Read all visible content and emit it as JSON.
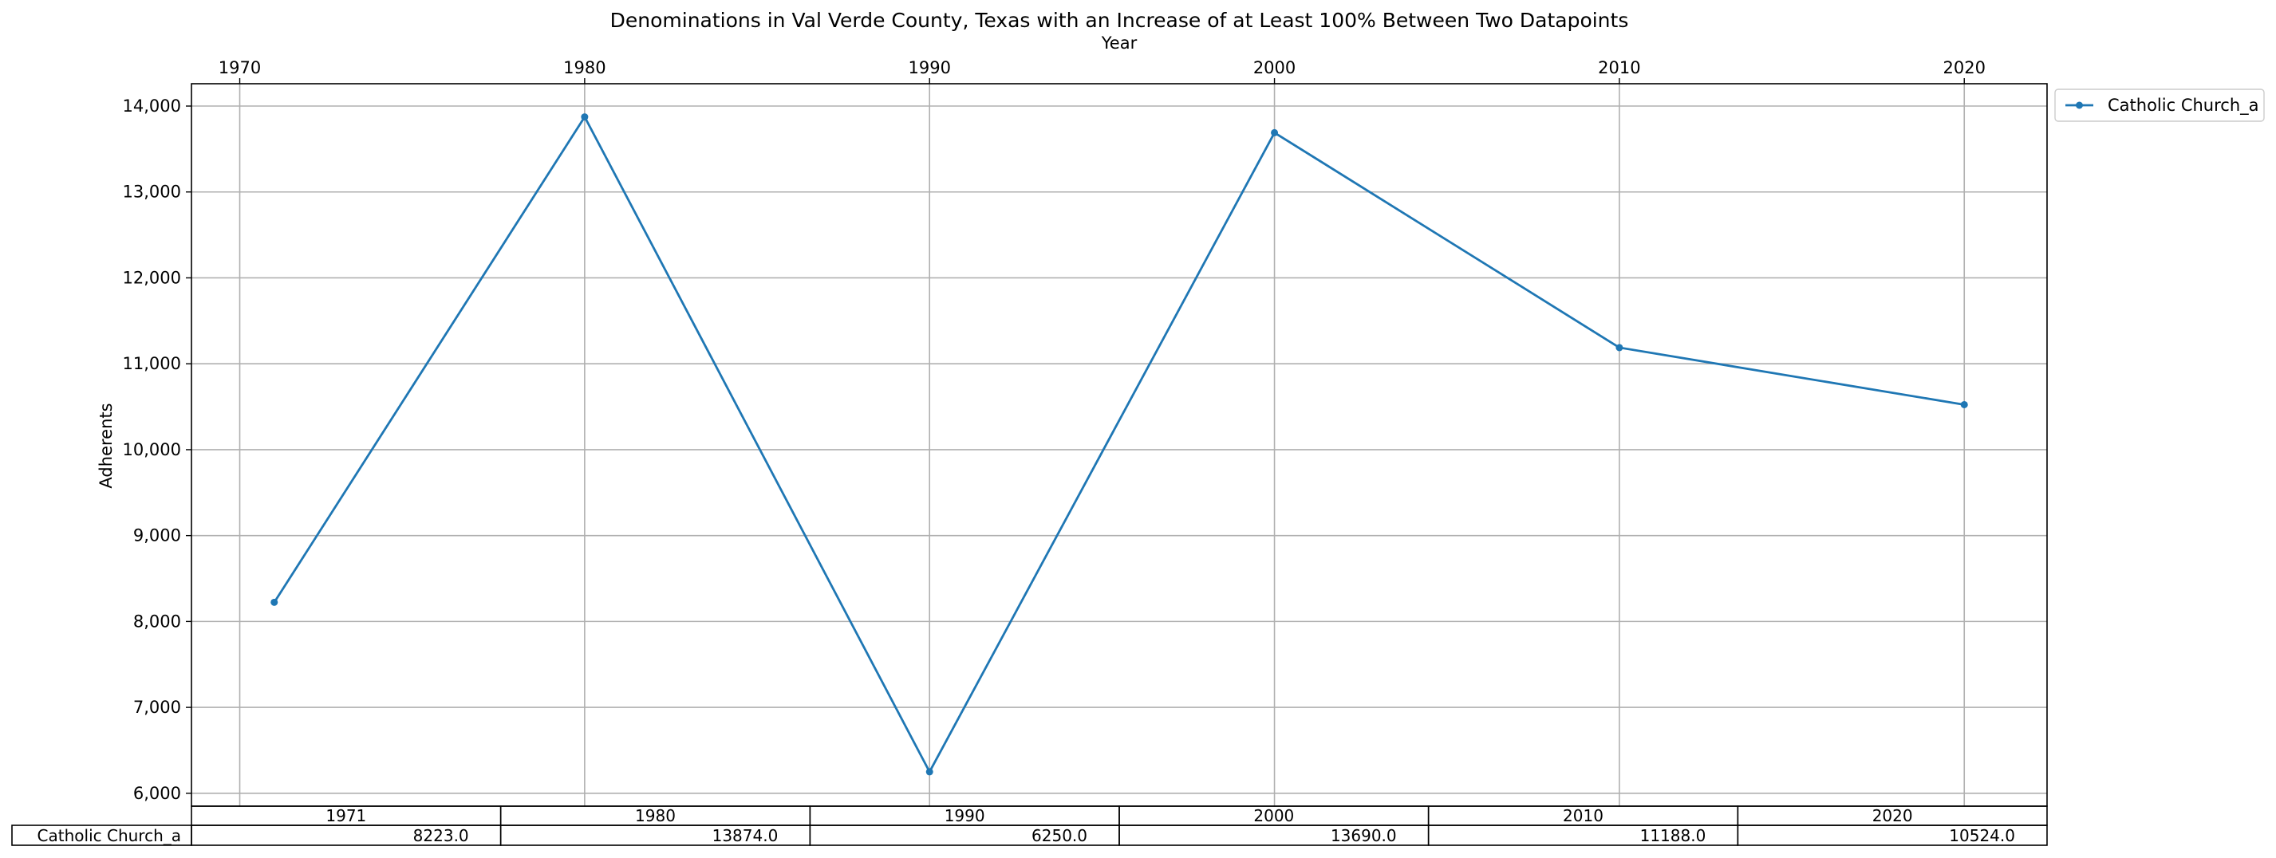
{
  "chart_data": {
    "type": "line",
    "title": "Denominations in Val Verde County, Texas with an Increase of at Least 100% Between Two Datapoints",
    "xlabel": "Year",
    "ylabel": "Adherents",
    "xlim": [
      1968.6,
      2022.4
    ],
    "ylim": [
      5850,
      14260
    ],
    "x_ticks": [
      1970,
      1980,
      1990,
      2000,
      2010,
      2020
    ],
    "y_ticks": [
      6000,
      7000,
      8000,
      9000,
      10000,
      11000,
      12000,
      13000,
      14000
    ],
    "y_tick_labels": [
      "6,000",
      "7,000",
      "8,000",
      "9,000",
      "10,000",
      "11,000",
      "12,000",
      "13,000",
      "14,000"
    ],
    "grid": true,
    "legend_position": "outside-top-right",
    "series": [
      {
        "name": "Catholic Church_a",
        "color": "#1f77b4",
        "marker": "circle",
        "x": [
          1971,
          1980,
          1990,
          2000,
          2010,
          2020
        ],
        "y": [
          8223,
          13874,
          6250,
          13690,
          11188,
          10524
        ]
      }
    ],
    "table": {
      "columns": [
        "1971",
        "1980",
        "1990",
        "2000",
        "2010",
        "2020"
      ],
      "rows": [
        {
          "label": "Catholic Church_a",
          "cells": [
            "8223.0",
            "13874.0",
            "6250.0",
            "13690.0",
            "11188.0",
            "10524.0"
          ]
        }
      ]
    }
  }
}
